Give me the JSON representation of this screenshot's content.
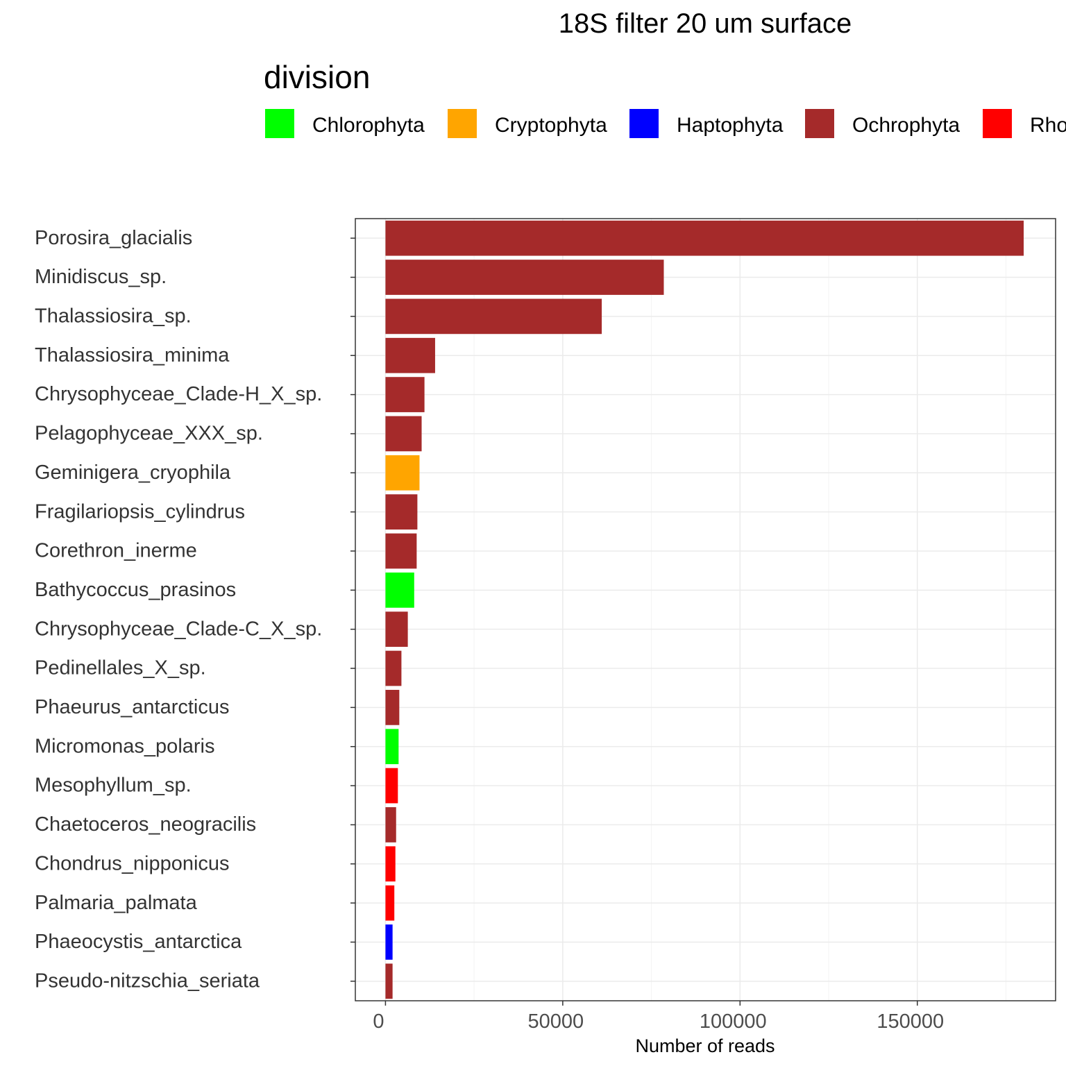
{
  "chart_data": {
    "type": "bar",
    "orientation": "horizontal",
    "title": "18S filter 20 um surface",
    "xlabel": "Number of reads",
    "ylabel": "",
    "xlim": [
      -8500,
      189000
    ],
    "xticks": [
      0,
      50000,
      100000,
      150000
    ],
    "xtick_labels": [
      "0",
      "50000",
      "100000",
      "150000"
    ],
    "grid": true,
    "legend": {
      "title": "division",
      "position": "top",
      "entries": [
        {
          "name": "Chlorophyta",
          "color": "#00ff00"
        },
        {
          "name": "Cryptophyta",
          "color": "#ffa500"
        },
        {
          "name": "Haptophyta",
          "color": "#0000ff"
        },
        {
          "name": "Ochrophyta",
          "color": "#a52a2a"
        },
        {
          "name": "Rho",
          "color": "#ff0000"
        }
      ]
    },
    "categories": [
      "Porosira_glacialis",
      "Minidiscus_sp.",
      "Thalassiosira_sp.",
      "Thalassiosira_minima",
      "Chrysophyceae_Clade-H_X_sp.",
      "Pelagophyceae_XXX_sp.",
      "Geminigera_cryophila",
      "Fragilariopsis_cylindrus",
      "Corethron_inerme",
      "Bathycoccus_prasinos",
      "Chrysophyceae_Clade-C_X_sp.",
      "Pedinellales_X_sp.",
      "Phaeurus_antarcticus",
      "Micromonas_polaris",
      "Mesophyllum_sp.",
      "Chaetoceros_neogracilis",
      "Chondrus_nipponicus",
      "Palmaria_palmata",
      "Phaeocystis_antarctica",
      "Pseudo-nitzschia_seriata"
    ],
    "values": [
      180000,
      78500,
      61000,
      14000,
      11000,
      10200,
      9600,
      9000,
      8800,
      8100,
      6300,
      4500,
      3900,
      3700,
      3500,
      3000,
      2800,
      2500,
      2000,
      2000
    ],
    "divisions": [
      "Ochrophyta",
      "Ochrophyta",
      "Ochrophyta",
      "Ochrophyta",
      "Ochrophyta",
      "Ochrophyta",
      "Cryptophyta",
      "Ochrophyta",
      "Ochrophyta",
      "Chlorophyta",
      "Ochrophyta",
      "Ochrophyta",
      "Ochrophyta",
      "Chlorophyta",
      "Rhodophyta",
      "Ochrophyta",
      "Rhodophyta",
      "Rhodophyta",
      "Haptophyta",
      "Ochrophyta"
    ],
    "colors": {
      "Chlorophyta": "#00ff00",
      "Cryptophyta": "#ffa500",
      "Haptophyta": "#0000ff",
      "Ochrophyta": "#a52a2a",
      "Rhodophyta": "#ff0000"
    }
  }
}
